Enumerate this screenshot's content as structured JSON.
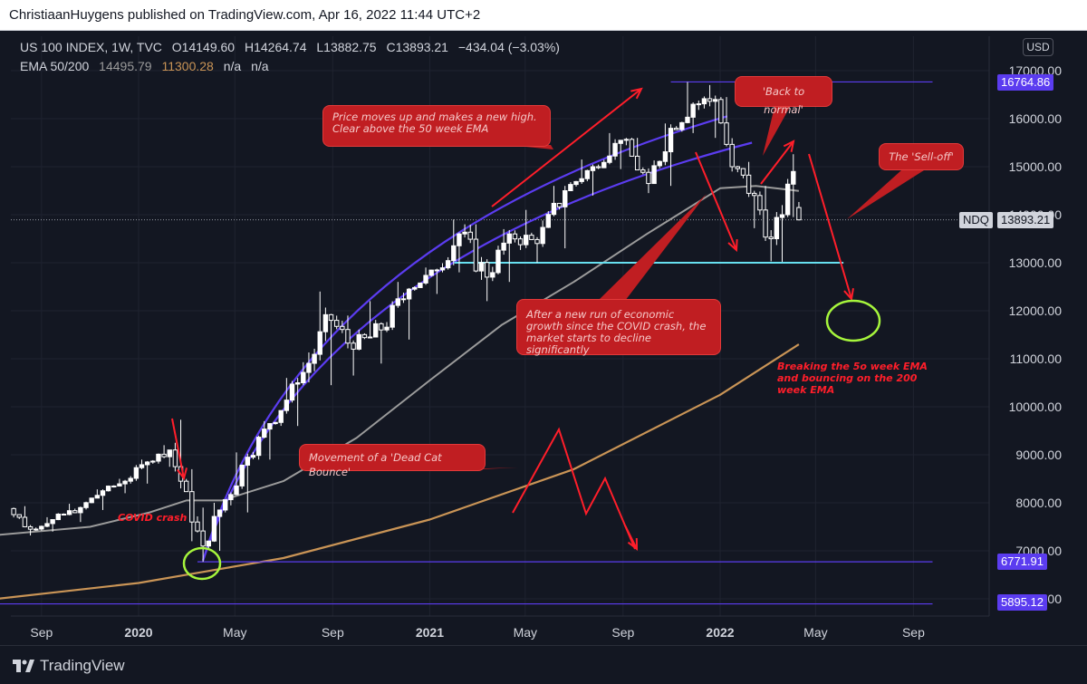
{
  "header": {
    "published_by": "ChristiaanHuygens published on TradingView.com, Apr 16, 2022 11:44 UTC+2",
    "symbol_line": "US 100 INDEX, 1W, TVC",
    "open": "O14149.60",
    "high": "H14264.74",
    "low": "L13882.75",
    "close": "C13893.21",
    "change": "−434.04 (−3.03%)",
    "ema_label": "EMA 50/200",
    "ema50_value": "14495.79",
    "ema200_value": "11300.28",
    "na1": "n/a",
    "na2": "n/a"
  },
  "currency_button": "USD",
  "footer": {
    "logo_text": "TradingView"
  },
  "colors": {
    "background": "#131722",
    "candle": "#ffffff",
    "ema50": "#9b9b9b",
    "ema200": "#c99456",
    "trend_line": "#5b3cf0",
    "support_line": "#67e0f0",
    "annotation_red": "#c01e22",
    "arrow_red": "#ff1e2a",
    "highlight_green": "#a6f53c"
  },
  "annotations": {
    "new_high": "Price moves up and makes a new high. Clear above the 50 week EMA",
    "back_to_normal": "'Back to normal'",
    "sell_off": "The 'Sell-off'",
    "decline": "After a new run of economic growth since the COVID crash, the market starts to decline significantly",
    "dead_cat": "Movement of a 'Dead Cat Bounce'",
    "breaking": "Breaking the 5o week EMA and bouncing on the 200 week EMA",
    "covid": "COVID crash"
  },
  "price_tags": {
    "high": "16764.86",
    "ndq_label": "NDQ",
    "current": "13893.21",
    "low1": "6771.91",
    "low2": "5895.12"
  },
  "chart_data": {
    "type": "candlestick",
    "title": "US 100 INDEX, 1W, TVC",
    "ylim": [
      5600,
      17600
    ],
    "y_ticks": [
      "17000.00",
      "16000.00",
      "15000.00",
      "14000.00",
      "13000.00",
      "12000.00",
      "11000.00",
      "10000.00",
      "9000.00",
      "8000.00",
      "7000.00",
      "6000.00"
    ],
    "x_ticks": [
      "Sep",
      "2020",
      "May",
      "Sep",
      "2021",
      "May",
      "Sep",
      "2022",
      "May",
      "Sep"
    ],
    "x_tick_dates": [
      "2019-09-01",
      "2020-01-01",
      "2020-05-01",
      "2020-09-01",
      "2021-01-01",
      "2021-05-01",
      "2021-09-01",
      "2022-01-01",
      "2022-05-01",
      "2022-09-01"
    ],
    "candles_start_date": "2019-07-07",
    "candles": [
      {
        "d": "2019-07-07",
        "o": 7800,
        "h": 7950,
        "l": 7700,
        "c": 7880
      },
      {
        "d": "2019-07-28",
        "o": 7880,
        "h": 7930,
        "l": 7320,
        "c": 7450
      },
      {
        "d": "2019-08-25",
        "o": 7450,
        "h": 7700,
        "l": 7400,
        "c": 7650
      },
      {
        "d": "2019-09-22",
        "o": 7650,
        "h": 7980,
        "l": 7600,
        "c": 7900
      },
      {
        "d": "2019-10-27",
        "o": 7900,
        "h": 8280,
        "l": 7850,
        "c": 8250
      },
      {
        "d": "2019-11-24",
        "o": 8250,
        "h": 8500,
        "l": 8200,
        "c": 8450
      },
      {
        "d": "2019-12-22",
        "o": 8450,
        "h": 8900,
        "l": 8400,
        "c": 8850
      },
      {
        "d": "2020-01-19",
        "o": 8850,
        "h": 9200,
        "l": 8750,
        "c": 9100
      },
      {
        "d": "2020-02-16",
        "o": 9100,
        "h": 9730,
        "l": 8300,
        "c": 8450
      },
      {
        "d": "2020-03-01",
        "o": 8450,
        "h": 8700,
        "l": 7200,
        "c": 7600
      },
      {
        "d": "2020-03-15",
        "o": 7600,
        "h": 7900,
        "l": 6771.91,
        "c": 7100
      },
      {
        "d": "2020-03-29",
        "o": 7100,
        "h": 8000,
        "l": 7000,
        "c": 7850
      },
      {
        "d": "2020-04-19",
        "o": 7850,
        "h": 9050,
        "l": 7800,
        "c": 8950
      },
      {
        "d": "2020-05-24",
        "o": 8950,
        "h": 9700,
        "l": 8900,
        "c": 9650
      },
      {
        "d": "2020-06-21",
        "o": 9650,
        "h": 10600,
        "l": 9600,
        "c": 10500
      },
      {
        "d": "2020-07-26",
        "o": 10500,
        "h": 12400,
        "l": 10450,
        "c": 11800
      },
      {
        "d": "2020-09-06",
        "o": 11800,
        "h": 11900,
        "l": 10650,
        "c": 11200
      },
      {
        "d": "2020-10-04",
        "o": 11200,
        "h": 12200,
        "l": 10900,
        "c": 11600
      },
      {
        "d": "2020-11-08",
        "o": 11600,
        "h": 12600,
        "l": 11400,
        "c": 12450
      },
      {
        "d": "2020-12-13",
        "o": 12450,
        "h": 12900,
        "l": 12350,
        "c": 12850
      },
      {
        "d": "2021-01-17",
        "o": 12850,
        "h": 13900,
        "l": 12800,
        "c": 13600
      },
      {
        "d": "2021-02-14",
        "o": 13600,
        "h": 13800,
        "l": 12200,
        "c": 12700
      },
      {
        "d": "2021-03-21",
        "o": 12700,
        "h": 13700,
        "l": 12600,
        "c": 13600
      },
      {
        "d": "2021-04-18",
        "o": 13600,
        "h": 14100,
        "l": 13000,
        "c": 13400
      },
      {
        "d": "2021-05-23",
        "o": 13400,
        "h": 14600,
        "l": 13300,
        "c": 14500
      },
      {
        "d": "2021-06-27",
        "o": 14500,
        "h": 15150,
        "l": 14400,
        "c": 15000
      },
      {
        "d": "2021-08-01",
        "o": 15000,
        "h": 15700,
        "l": 14950,
        "c": 15550
      },
      {
        "d": "2021-09-05",
        "o": 15550,
        "h": 15600,
        "l": 14450,
        "c": 14650
      },
      {
        "d": "2021-10-10",
        "o": 14650,
        "h": 15900,
        "l": 14600,
        "c": 15800
      },
      {
        "d": "2021-11-07",
        "o": 15800,
        "h": 16764.86,
        "l": 15700,
        "c": 16300
      },
      {
        "d": "2021-12-05",
        "o": 16300,
        "h": 16700,
        "l": 15600,
        "c": 16400
      },
      {
        "d": "2022-01-02",
        "o": 16400,
        "h": 16450,
        "l": 14900,
        "c": 15000
      },
      {
        "d": "2022-01-23",
        "o": 15000,
        "h": 15100,
        "l": 13720,
        "c": 14400
      },
      {
        "d": "2022-02-20",
        "o": 14400,
        "h": 14600,
        "l": 13030,
        "c": 13500
      },
      {
        "d": "2022-03-13",
        "o": 13500,
        "h": 14200,
        "l": 13020,
        "c": 14000
      },
      {
        "d": "2022-03-27",
        "o": 14000,
        "h": 15260,
        "l": 13950,
        "c": 14900
      },
      {
        "d": "2022-04-10",
        "o": 14149.6,
        "h": 14264.74,
        "l": 13882.75,
        "c": 13893.21
      }
    ],
    "ema50": [
      {
        "d": "2019-07-07",
        "v": 7330
      },
      {
        "d": "2019-11-01",
        "v": 7500
      },
      {
        "d": "2020-01-15",
        "v": 7800
      },
      {
        "d": "2020-03-01",
        "v": 8050
      },
      {
        "d": "2020-04-15",
        "v": 8050
      },
      {
        "d": "2020-07-01",
        "v": 8450
      },
      {
        "d": "2020-10-01",
        "v": 9350
      },
      {
        "d": "2021-01-01",
        "v": 10550
      },
      {
        "d": "2021-04-01",
        "v": 11700
      },
      {
        "d": "2021-07-01",
        "v": 12600
      },
      {
        "d": "2021-10-01",
        "v": 13600
      },
      {
        "d": "2022-01-01",
        "v": 14550
      },
      {
        "d": "2022-02-15",
        "v": 14600
      },
      {
        "d": "2022-04-10",
        "v": 14495.79
      }
    ],
    "ema200": [
      {
        "d": "2019-07-07",
        "v": 6000
      },
      {
        "d": "2020-01-01",
        "v": 6330
      },
      {
        "d": "2020-07-01",
        "v": 6850
      },
      {
        "d": "2021-01-01",
        "v": 7650
      },
      {
        "d": "2021-07-01",
        "v": 8700
      },
      {
        "d": "2022-01-01",
        "v": 10250
      },
      {
        "d": "2022-04-10",
        "v": 11300.28
      }
    ],
    "hlines": [
      {
        "v": 16764.86,
        "from": "2021-10-31",
        "to": "2022-09-25",
        "color": "#5b3cf0"
      },
      {
        "v": 13000,
        "from": "2021-02-01",
        "to": "2022-06-05",
        "color": "#67e0f0"
      },
      {
        "v": 6771.91,
        "from": "2020-03-15",
        "to": "2022-09-25",
        "color": "#5b3cf0"
      },
      {
        "v": 5895.12,
        "from": "2019-07-07",
        "to": "2022-09-25",
        "color": "#5b3cf0"
      }
    ],
    "trend_curves": [
      {
        "from": "2020-03-22",
        "to": "2022-01-10",
        "start_v": 6800,
        "end_v": 16050
      },
      {
        "from": "2020-03-22",
        "to": "2022-02-10",
        "start_v": 6800,
        "end_v": 15500
      }
    ],
    "projection": {
      "target_date": "2022-06-01",
      "target_v": 12100
    }
  }
}
